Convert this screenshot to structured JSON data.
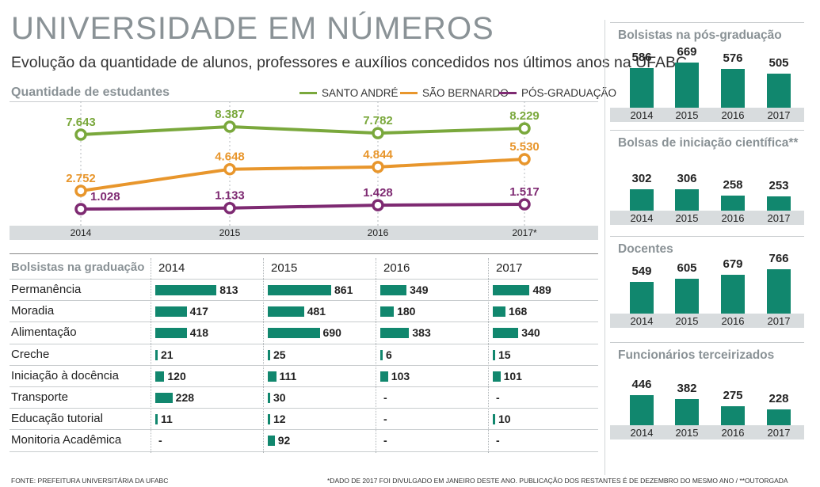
{
  "title": "UNIVERSIDADE EM NÚMEROS",
  "subtitle": "Evolução da quantidade de alunos, professores e auxílios concedidos nos últimos anos na UFABC",
  "line_section_title": "Quantidade de estudantes",
  "colors": {
    "green": "#7aa83c",
    "orange": "#e8962c",
    "purple": "#7e2a72",
    "teal": "#11876e",
    "grey": "#8a9296"
  },
  "table": {
    "header": "Bolsistas na graduação",
    "years": [
      "2014",
      "2015",
      "2016",
      "2017"
    ],
    "rows": [
      {
        "label": "Permanência",
        "values": [
          "813",
          "861",
          "349",
          "489"
        ]
      },
      {
        "label": "Moradia",
        "values": [
          "417",
          "481",
          "180",
          "168"
        ]
      },
      {
        "label": "Alimentação",
        "values": [
          "418",
          "690",
          "383",
          "340"
        ]
      },
      {
        "label": "Creche",
        "values": [
          "21",
          "25",
          "6",
          "15"
        ]
      },
      {
        "label": "Iniciação à docência",
        "values": [
          "120",
          "111",
          "103",
          "101"
        ]
      },
      {
        "label": "Transporte",
        "values": [
          "228",
          "30",
          "-",
          "-"
        ]
      },
      {
        "label": "Educação tutorial",
        "values": [
          "11",
          "12",
          "-",
          "10"
        ]
      },
      {
        "label": "Monitoria Acadêmica",
        "values": [
          "-",
          "92",
          "-",
          "-"
        ]
      }
    ]
  },
  "footer": {
    "source": "FONTE: PREFEITURA UNIVERSITÁRIA DA UFABC",
    "note": "*DADO DE 2017 FOI DIVULGADO EM JANEIRO DESTE ANO. PUBLICAÇÃO DOS RESTANTES É DE DEZEMBRO DO MESMO ANO / **OUTORGADA"
  },
  "chart_data": [
    {
      "type": "line",
      "title": "Quantidade de estudantes",
      "categories": [
        "2014",
        "2015",
        "2016",
        "2017*"
      ],
      "series": [
        {
          "name": "SANTO ANDRÉ",
          "values": [
            7643,
            8387,
            7782,
            8229
          ],
          "labels": [
            "7.643",
            "8.387",
            "7.782",
            "8.229"
          ]
        },
        {
          "name": "SÃO BERNARDO",
          "values": [
            2752,
            4648,
            4844,
            5530
          ],
          "labels": [
            "2.752",
            "4.648",
            "4.844",
            "5.530"
          ]
        },
        {
          "name": "PÓS-GRADUAÇÃO",
          "values": [
            1028,
            1133,
            1428,
            1517
          ],
          "labels": [
            "1.028",
            "1.133",
            "1.428",
            "1.517"
          ]
        }
      ],
      "legend": "top-right"
    },
    {
      "type": "bar",
      "title": "Bolsistas na pós-graduação",
      "categories": [
        "2014",
        "2015",
        "2016",
        "2017"
      ],
      "values": [
        586,
        669,
        576,
        505
      ]
    },
    {
      "type": "bar",
      "title": "Bolsas de iniciação científica**",
      "categories": [
        "2014",
        "2015",
        "2016",
        "2017"
      ],
      "values": [
        302,
        306,
        258,
        253
      ]
    },
    {
      "type": "bar",
      "title": "Docentes",
      "categories": [
        "2014",
        "2015",
        "2016",
        "2017"
      ],
      "values": [
        549,
        605,
        679,
        766
      ]
    },
    {
      "type": "bar",
      "title": "Funcionários terceirizados",
      "categories": [
        "2014",
        "2015",
        "2016",
        "2017"
      ],
      "values": [
        446,
        382,
        275,
        228
      ]
    }
  ]
}
